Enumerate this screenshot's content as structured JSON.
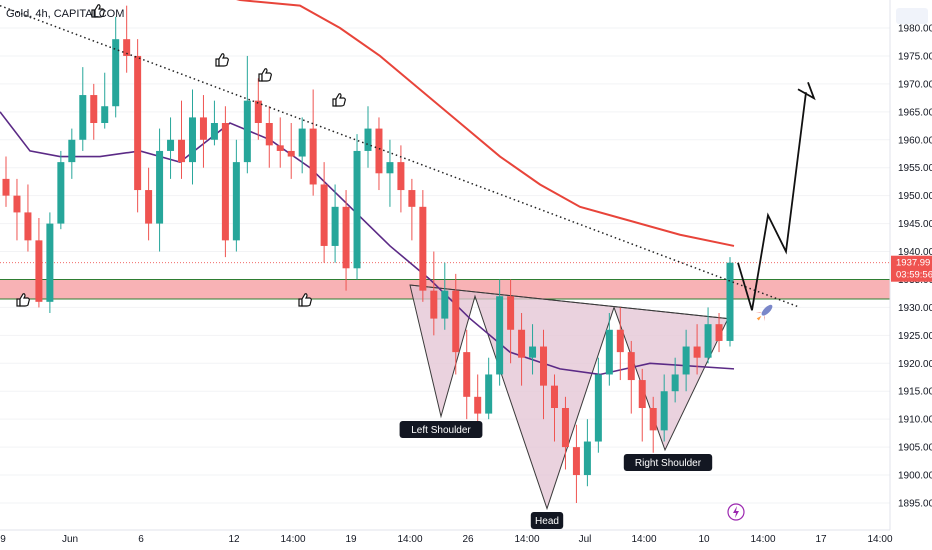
{
  "header": {
    "symbol": "Gold, 4h, CAPITALCOM"
  },
  "colors": {
    "up": "#26a69a",
    "down": "#ef5350",
    "ma_long": "#e8443a",
    "ma_short": "#5b2a86",
    "zone": "#f7a4a8",
    "zone_line": "#2e7d32",
    "pattern_fill": "#e3c3d3",
    "pattern_stroke": "#3a3a3a"
  },
  "chart_data": {
    "type": "candlestick",
    "title": "Gold, 4h, CAPITALCOM",
    "ylim": [
      1890,
      1985
    ],
    "y_ticks": [
      1895,
      1900,
      1905,
      1910,
      1915,
      1920,
      1925,
      1930,
      1935,
      1940,
      1945,
      1950,
      1955,
      1960,
      1965,
      1970,
      1975,
      1980
    ],
    "x_ticks": [
      "9",
      "Jun",
      "6",
      "12",
      "14:00",
      "19",
      "14:00",
      "26",
      "14:00",
      "Jul",
      "14:00",
      "10",
      "14:00",
      "17",
      "14:00"
    ],
    "current_price": "1937.99",
    "countdown": "03:59:56",
    "support_zone": [
      1931.5,
      1935.0
    ],
    "pattern": {
      "name": "inverse head and shoulders",
      "labels": {
        "left_shoulder": "Left Shoulder",
        "head": "Head",
        "right_shoulder": "Right Shoulder"
      },
      "neckline": [
        1934.0,
        1928.0
      ],
      "left_shoulder": 1910.5,
      "head": 1894.0,
      "right_shoulder": 1904.5
    },
    "projection": [
      1938.0,
      1929.5,
      1946.5,
      1940.0,
      1968.5
    ],
    "trendline": [
      1984.0,
      1930.0
    ],
    "ma_long": [
      1995,
      1992,
      1990,
      1988,
      1985,
      1984,
      1980,
      1975,
      1969,
      1963,
      1957,
      1952,
      1948,
      1946,
      1943,
      1941
    ],
    "ma_short": [
      1965,
      1958,
      1957,
      1957,
      1958,
      1956,
      1963,
      1960,
      1955,
      1948,
      1941,
      1935,
      1928,
      1922,
      1919,
      1918,
      1920,
      1919
    ],
    "candles": [
      [
        1953,
        1950,
        1957,
        1948
      ],
      [
        1950,
        1947,
        1953,
        1942
      ],
      [
        1947,
        1942,
        1952,
        1940
      ],
      [
        1942,
        1931,
        1946,
        1930
      ],
      [
        1931,
        1945,
        1947,
        1929
      ],
      [
        1945,
        1956,
        1958,
        1944
      ],
      [
        1956,
        1960,
        1962,
        1953
      ],
      [
        1960,
        1968,
        1973,
        1958
      ],
      [
        1968,
        1963,
        1970,
        1960
      ],
      [
        1963,
        1966,
        1972,
        1962
      ],
      [
        1966,
        1978,
        1982,
        1964
      ],
      [
        1978,
        1975,
        1984,
        1972
      ],
      [
        1975,
        1951,
        1978,
        1947
      ],
      [
        1951,
        1945,
        1955,
        1942
      ],
      [
        1945,
        1958,
        1962,
        1940
      ],
      [
        1958,
        1960,
        1964,
        1953
      ],
      [
        1960,
        1956,
        1967,
        1953
      ],
      [
        1956,
        1964,
        1969,
        1952
      ],
      [
        1964,
        1960,
        1968,
        1955
      ],
      [
        1960,
        1963,
        1967,
        1959
      ],
      [
        1963,
        1942,
        1966,
        1939
      ],
      [
        1942,
        1956,
        1960,
        1940
      ],
      [
        1956,
        1967,
        1975,
        1954
      ],
      [
        1967,
        1963,
        1971,
        1960
      ],
      [
        1963,
        1959,
        1966,
        1955
      ],
      [
        1959,
        1958,
        1964,
        1955
      ],
      [
        1958,
        1957,
        1963,
        1953
      ],
      [
        1957,
        1962,
        1964,
        1954
      ],
      [
        1962,
        1952,
        1969,
        1950
      ],
      [
        1952,
        1941,
        1956,
        1938
      ],
      [
        1941,
        1948,
        1952,
        1938
      ],
      [
        1948,
        1937,
        1951,
        1933
      ],
      [
        1937,
        1958,
        1961,
        1935
      ],
      [
        1958,
        1962,
        1966,
        1955
      ],
      [
        1962,
        1954,
        1964,
        1951
      ],
      [
        1954,
        1956,
        1960,
        1948
      ],
      [
        1956,
        1951,
        1959,
        1947
      ],
      [
        1951,
        1948,
        1953,
        1942
      ],
      [
        1948,
        1933,
        1951,
        1931
      ],
      [
        1933,
        1928,
        1940,
        1925
      ],
      [
        1928,
        1933,
        1938,
        1926
      ],
      [
        1933,
        1922,
        1936,
        1918
      ],
      [
        1922,
        1914,
        1926,
        1910
      ],
      [
        1914,
        1911,
        1918,
        1909
      ],
      [
        1911,
        1918,
        1921,
        1910
      ],
      [
        1918,
        1932,
        1935,
        1916
      ],
      [
        1932,
        1926,
        1935,
        1920
      ],
      [
        1926,
        1921,
        1929,
        1916
      ],
      [
        1921,
        1923,
        1927,
        1918
      ],
      [
        1923,
        1916,
        1926,
        1910
      ],
      [
        1916,
        1912,
        1918,
        1906
      ],
      [
        1912,
        1905,
        1914,
        1901
      ],
      [
        1905,
        1900,
        1909,
        1895
      ],
      [
        1900,
        1906,
        1910,
        1898
      ],
      [
        1906,
        1918,
        1921,
        1904
      ],
      [
        1918,
        1926,
        1929,
        1916
      ],
      [
        1926,
        1922,
        1930,
        1917
      ],
      [
        1922,
        1917,
        1924,
        1911
      ],
      [
        1917,
        1912,
        1919,
        1906
      ],
      [
        1912,
        1908,
        1914,
        1904
      ],
      [
        1908,
        1915,
        1918,
        1906
      ],
      [
        1915,
        1918,
        1921,
        1913
      ],
      [
        1918,
        1923,
        1926,
        1915
      ],
      [
        1923,
        1921,
        1927,
        1918
      ],
      [
        1921,
        1927,
        1930,
        1920
      ],
      [
        1927,
        1924,
        1929,
        1922
      ],
      [
        1924,
        1938,
        1939,
        1923
      ]
    ]
  },
  "bottom_badge": {
    "icon": "lightning-icon"
  }
}
